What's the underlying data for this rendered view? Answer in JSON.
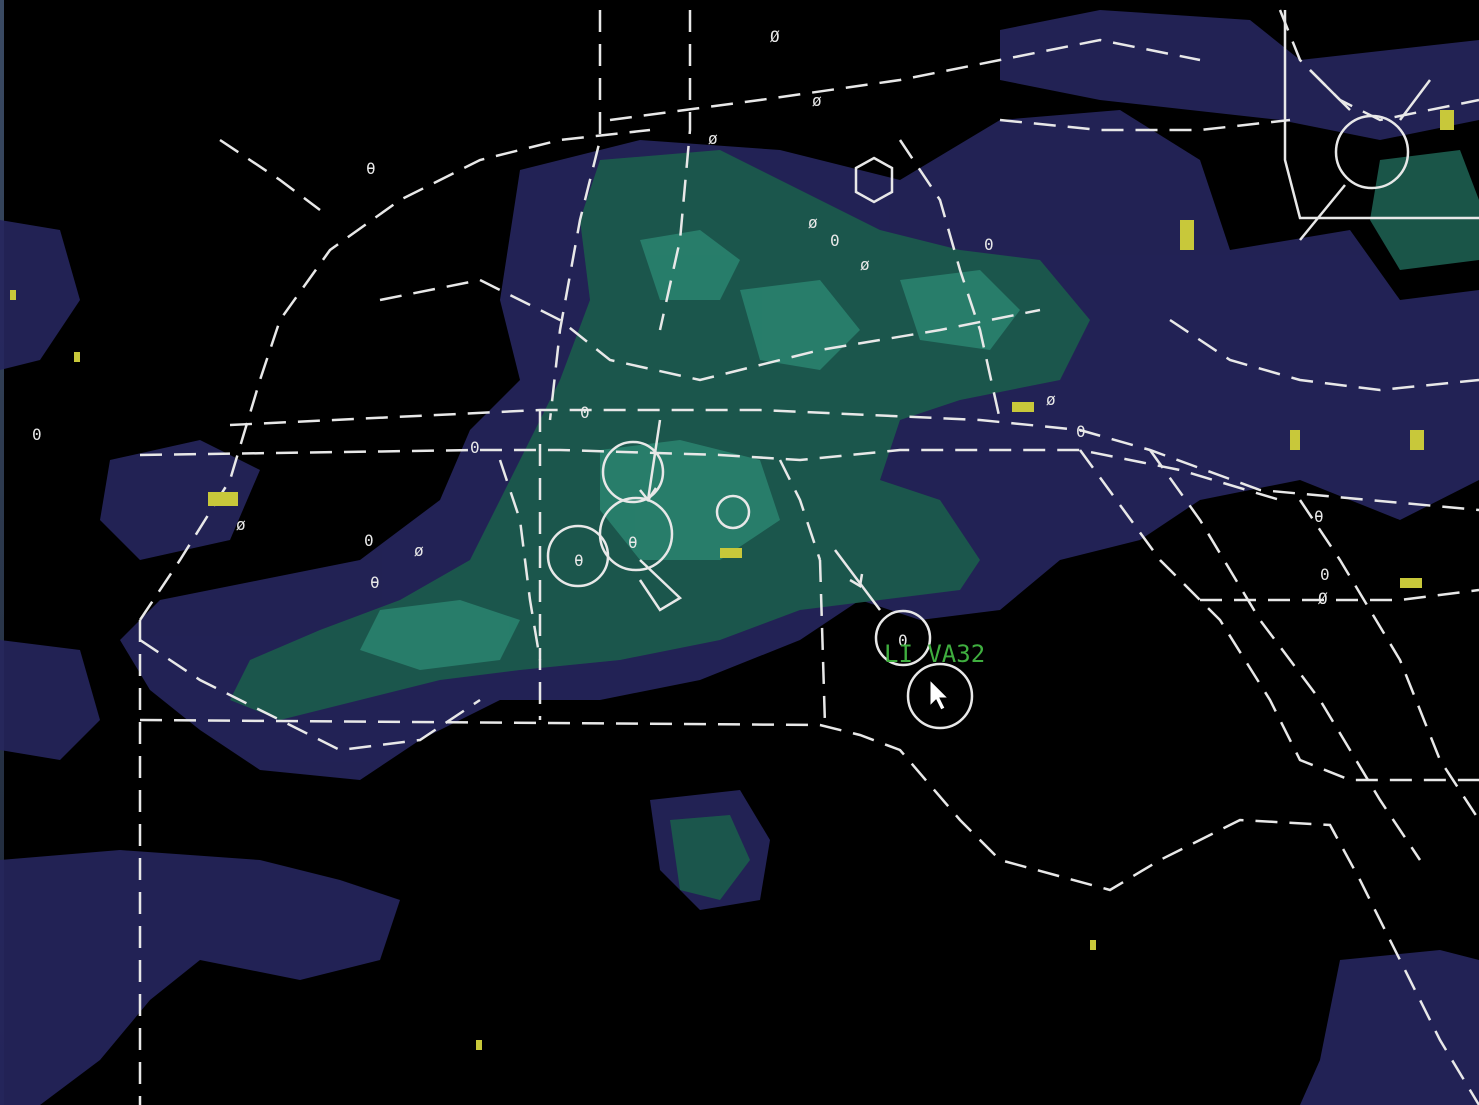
{
  "display": {
    "name": "weather-radar-scope",
    "colors": {
      "background": "#000000",
      "light_precip": "#2a2a66",
      "moderate_precip": "#1e6a5a",
      "heavy_precip": "#2f8f7a",
      "overlay_lines": "#e8e8e8",
      "clutter": "#c8c83a",
      "datablock": "#3fae3f"
    }
  },
  "target": {
    "datablock": "LI VA32"
  },
  "fixes": [
    "0",
    "ø",
    "θ",
    "0",
    "0",
    "θ",
    "ø",
    "0",
    "Ø",
    "0"
  ],
  "icons": {
    "cursor": "mouse-pointer-icon",
    "aircraft": "aircraft-track-icon"
  }
}
